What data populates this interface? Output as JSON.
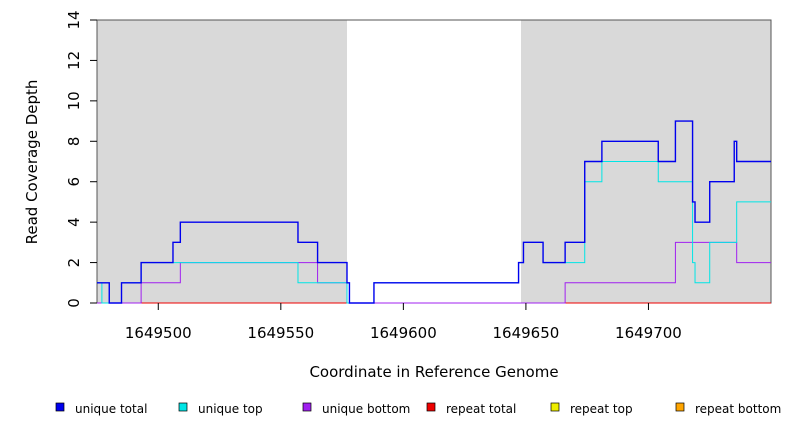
{
  "chart_data": {
    "type": "line",
    "title": "",
    "xlabel": "Coordinate in Reference Genome",
    "ylabel": "Read Coverage Depth",
    "xlim": [
      1649475,
      1649750
    ],
    "ylim": [
      0,
      14
    ],
    "x_ticks": [
      1649500,
      1649550,
      1649600,
      1649650,
      1649700
    ],
    "x_tick_labels": [
      "1649500",
      "1649550",
      "1649600",
      "1649650",
      "1649700"
    ],
    "y_ticks": [
      0,
      2,
      4,
      6,
      8,
      10,
      12,
      14
    ],
    "y_tick_labels": [
      "0",
      "2",
      "4",
      "6",
      "8",
      "10",
      "12",
      "14"
    ],
    "shaded_regions": [
      {
        "from": 1649475,
        "to": 1649577
      },
      {
        "from": 1649648,
        "to": 1649750
      }
    ],
    "grid": false,
    "legend_position": "bottom",
    "series": [
      {
        "name": "unique total",
        "color": "#0000ee",
        "x": [
          1649475,
          1649480,
          1649485,
          1649493,
          1649506,
          1649509,
          1649557,
          1649565,
          1649577,
          1649578,
          1649588,
          1649647,
          1649649,
          1649657,
          1649666,
          1649674,
          1649681,
          1649704,
          1649711,
          1649718,
          1649719,
          1649725,
          1649735,
          1649736,
          1649750
        ],
        "y": [
          1,
          0,
          1,
          2,
          3,
          4,
          3,
          2,
          1,
          0,
          1,
          2,
          3,
          2,
          3,
          7,
          8,
          7,
          9,
          5,
          4,
          6,
          8,
          7,
          7
        ]
      },
      {
        "name": "unique top",
        "color": "#00e5e5",
        "x": [
          1649475,
          1649477,
          1649481,
          1649485,
          1649493,
          1649506,
          1649509,
          1649557,
          1649565,
          1649577,
          1649578,
          1649588,
          1649647,
          1649649,
          1649657,
          1649666,
          1649674,
          1649681,
          1649704,
          1649718,
          1649719,
          1649725,
          1649736,
          1649750
        ],
        "y": [
          1,
          0,
          0,
          1,
          2,
          2,
          2,
          1,
          1,
          0,
          0,
          1,
          2,
          3,
          2,
          2,
          6,
          7,
          6,
          2,
          1,
          3,
          5,
          5
        ]
      },
      {
        "name": "unique bottom",
        "color": "#a020f0",
        "x": [
          1649475,
          1649477,
          1649493,
          1649509,
          1649565,
          1649577,
          1649578,
          1649666,
          1649711,
          1649736,
          1649750
        ],
        "y": [
          0,
          0,
          1,
          2,
          1,
          0,
          0,
          1,
          3,
          2,
          2
        ]
      },
      {
        "name": "repeat total",
        "color": "#ee0000",
        "x": [
          1649475,
          1649750
        ],
        "y": [
          0,
          0
        ]
      },
      {
        "name": "repeat top",
        "color": "#eeee00",
        "x": [
          1649475,
          1649750
        ],
        "y": [
          0,
          0
        ]
      },
      {
        "name": "repeat bottom",
        "color": "#ffa500",
        "x": [
          1649475,
          1649750
        ],
        "y": [
          0,
          0
        ]
      }
    ]
  }
}
